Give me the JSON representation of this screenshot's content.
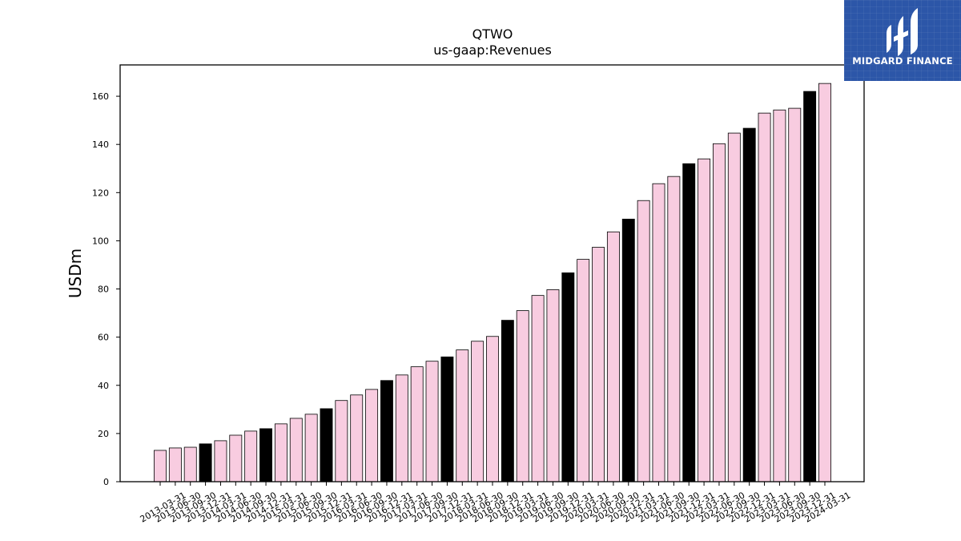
{
  "chart_data": {
    "type": "bar",
    "title": "QTWO",
    "subtitle": "us-gaap:Revenues",
    "ylabel": "USDm",
    "xlabel": "",
    "ylim": [
      0,
      173
    ],
    "yticks": [
      0,
      20,
      40,
      60,
      80,
      100,
      120,
      140,
      160
    ],
    "grid": false,
    "colors": {
      "default": "#f8cce0",
      "q4": "#000000",
      "edge": "#000000"
    },
    "categories": [
      "2013-03-31",
      "2013-06-30",
      "2013-09-30",
      "2013-12-31",
      "2014-03-31",
      "2014-06-30",
      "2014-09-30",
      "2014-12-31",
      "2015-03-31",
      "2015-06-30",
      "2015-09-30",
      "2015-12-31",
      "2016-03-31",
      "2016-06-30",
      "2016-09-30",
      "2016-12-31",
      "2017-03-31",
      "2017-06-30",
      "2017-09-30",
      "2017-12-31",
      "2018-03-31",
      "2018-06-30",
      "2018-09-30",
      "2018-12-31",
      "2019-03-31",
      "2019-06-30",
      "2019-09-30",
      "2019-12-31",
      "2020-03-31",
      "2020-06-30",
      "2020-09-30",
      "2020-12-31",
      "2021-03-31",
      "2021-06-30",
      "2021-09-30",
      "2021-12-31",
      "2022-03-31",
      "2022-06-30",
      "2022-09-30",
      "2022-12-31",
      "2023-03-31",
      "2023-06-30",
      "2023-09-30",
      "2023-12-31",
      "2024-03-31"
    ],
    "values": [
      13.0,
      14.0,
      14.3,
      15.7,
      17.0,
      19.3,
      21.0,
      22.0,
      24.0,
      26.3,
      28.0,
      30.3,
      33.7,
      36.0,
      38.3,
      42.0,
      44.3,
      47.7,
      50.0,
      51.8,
      54.7,
      58.3,
      60.3,
      67.0,
      71.0,
      77.3,
      79.7,
      86.7,
      92.3,
      97.3,
      103.7,
      109.0,
      116.7,
      123.7,
      126.7,
      132.0,
      134.0,
      140.3,
      144.7,
      146.7,
      153.0,
      154.3,
      155.0,
      162.0,
      165.3
    ],
    "highlight_q4": true
  },
  "watermark": {
    "text": "MIDGARD FINANCE",
    "icon": "midgard-logo-icon",
    "background": "#2c56a8"
  }
}
